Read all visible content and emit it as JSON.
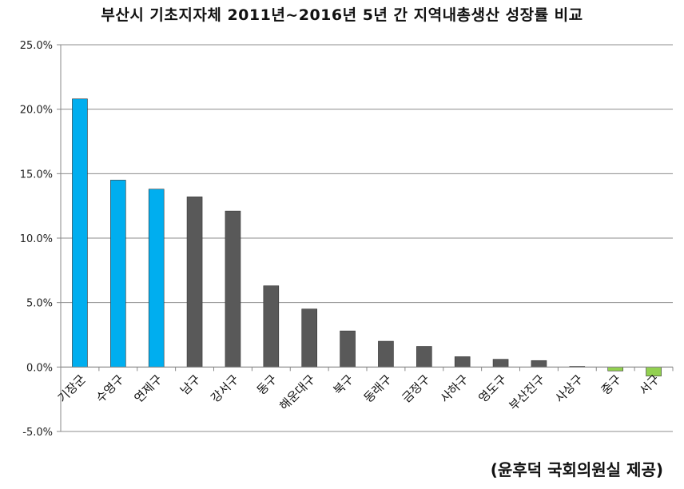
{
  "chart_data": {
    "type": "bar",
    "title": "부산시 기초지자체 2011년~2016년 5년 간 지역내총생산 성장률 비교",
    "source_note": "(윤후덕 국회의원실 제공)",
    "categories": [
      "기장군",
      "수영구",
      "연제구",
      "남구",
      "강서구",
      "동구",
      "해운대구",
      "북구",
      "동래구",
      "금정구",
      "사하구",
      "영도구",
      "부산진구",
      "사상구",
      "중구",
      "서구"
    ],
    "values": [
      20.8,
      14.5,
      13.8,
      13.2,
      12.1,
      6.3,
      4.5,
      2.8,
      2.0,
      1.6,
      0.8,
      0.6,
      0.5,
      0.05,
      -0.3,
      -0.7
    ],
    "bar_colors": [
      "#00aeef",
      "#00aeef",
      "#00aeef",
      "#595959",
      "#595959",
      "#595959",
      "#595959",
      "#595959",
      "#595959",
      "#595959",
      "#595959",
      "#595959",
      "#595959",
      "#595959",
      "#92d050",
      "#92d050"
    ],
    "yticks": [
      -5,
      0,
      5,
      10,
      15,
      20,
      25
    ],
    "ytick_labels": [
      "-5.0%",
      "0.0%",
      "5.0%",
      "10.0%",
      "15.0%",
      "20.0%",
      "25.0%"
    ],
    "ylim": [
      -5,
      25
    ],
    "xlabel": "",
    "ylabel": "",
    "grid": true,
    "legend": "none"
  }
}
